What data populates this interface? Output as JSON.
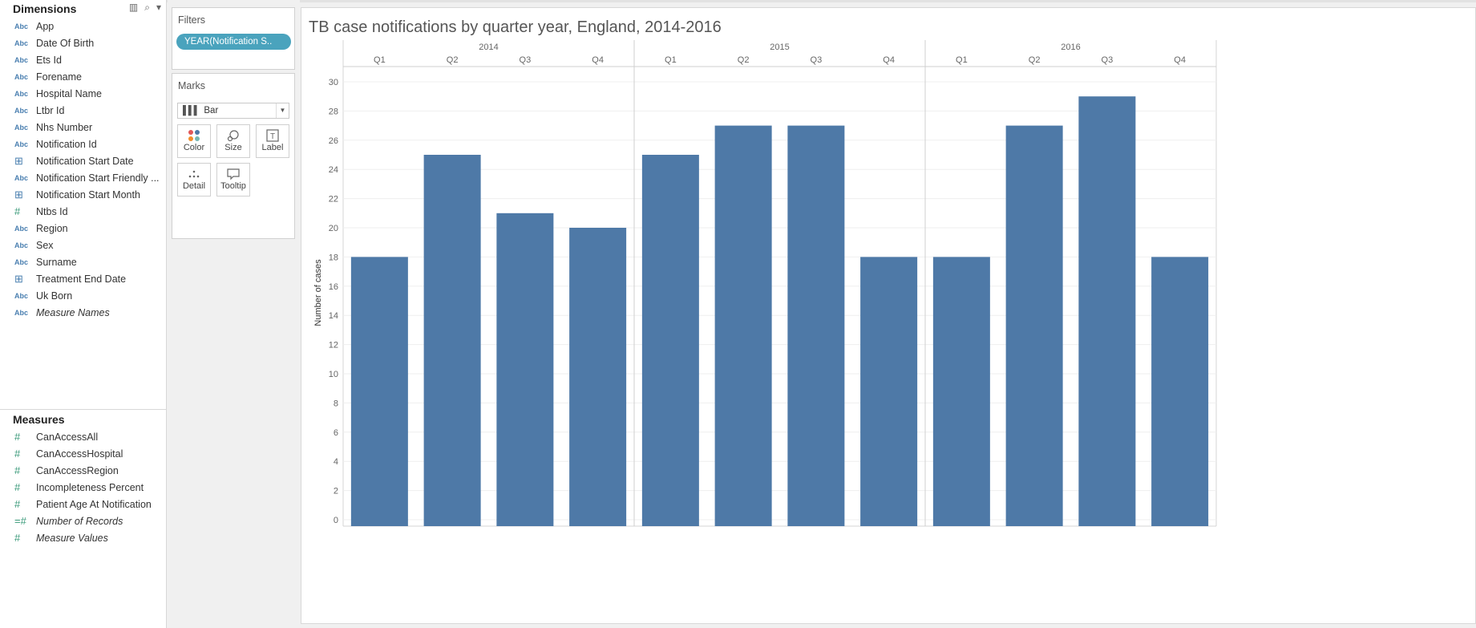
{
  "dimensions": {
    "title": "Dimensions",
    "fields": [
      {
        "label": "App",
        "type": "Abc"
      },
      {
        "label": "Date Of Birth",
        "type": "Abc"
      },
      {
        "label": "Ets Id",
        "type": "Abc"
      },
      {
        "label": "Forename",
        "type": "Abc"
      },
      {
        "label": "Hospital Name",
        "type": "Abc"
      },
      {
        "label": "Ltbr Id",
        "type": "Abc"
      },
      {
        "label": "Nhs Number",
        "type": "Abc"
      },
      {
        "label": "Notification Id",
        "type": "Abc"
      },
      {
        "label": "Notification Start Date",
        "type": "date"
      },
      {
        "label": "Notification Start Friendly ...",
        "type": "Abc"
      },
      {
        "label": "Notification Start Month",
        "type": "date"
      },
      {
        "label": "Ntbs Id",
        "type": "#"
      },
      {
        "label": "Region",
        "type": "Abc"
      },
      {
        "label": "Sex",
        "type": "Abc"
      },
      {
        "label": "Surname",
        "type": "Abc"
      },
      {
        "label": "Treatment End Date",
        "type": "date"
      },
      {
        "label": "Uk Born",
        "type": "Abc"
      },
      {
        "label": "Measure Names",
        "type": "Abc",
        "italic": true
      }
    ]
  },
  "measures": {
    "title": "Measures",
    "fields": [
      {
        "label": "CanAccessAll",
        "type": "#"
      },
      {
        "label": "CanAccessHospital",
        "type": "#"
      },
      {
        "label": "CanAccessRegion",
        "type": "#"
      },
      {
        "label": "Incompleteness Percent",
        "type": "#"
      },
      {
        "label": "Patient Age At Notification",
        "type": "#"
      },
      {
        "label": "Number of Records",
        "type": "=#",
        "italic": true
      },
      {
        "label": "Measure Values",
        "type": "#",
        "italic": true
      }
    ]
  },
  "filters": {
    "title": "Filters",
    "pill": "YEAR(Notification S.."
  },
  "marks": {
    "title": "Marks",
    "type": "Bar",
    "buttons": [
      "Color",
      "Size",
      "Label",
      "Detail",
      "Tooltip"
    ]
  },
  "viz": {
    "title": "TB case notifications by quarter year, England, 2014-2016"
  },
  "colors": {
    "bar": "#4e79a7",
    "pill": "#4aa3bd"
  },
  "chart_data": {
    "type": "bar",
    "title": "TB case notifications by quarter year, England, 2014-2016",
    "ylabel": "Number of cases",
    "xlabel": "",
    "ylim": [
      0,
      30
    ],
    "yticks": [
      0,
      2,
      4,
      6,
      8,
      10,
      12,
      14,
      16,
      18,
      20,
      22,
      24,
      26,
      28,
      30
    ],
    "groups": [
      {
        "year": "2014",
        "categories": [
          "Q1",
          "Q2",
          "Q3",
          "Q4"
        ],
        "values": [
          18,
          25,
          21,
          20
        ]
      },
      {
        "year": "2015",
        "categories": [
          "Q1",
          "Q2",
          "Q3",
          "Q4"
        ],
        "values": [
          25,
          27,
          27,
          18
        ]
      },
      {
        "year": "2016",
        "categories": [
          "Q1",
          "Q2",
          "Q3",
          "Q4"
        ],
        "values": [
          18,
          27,
          29,
          18
        ]
      }
    ],
    "grid": true
  }
}
